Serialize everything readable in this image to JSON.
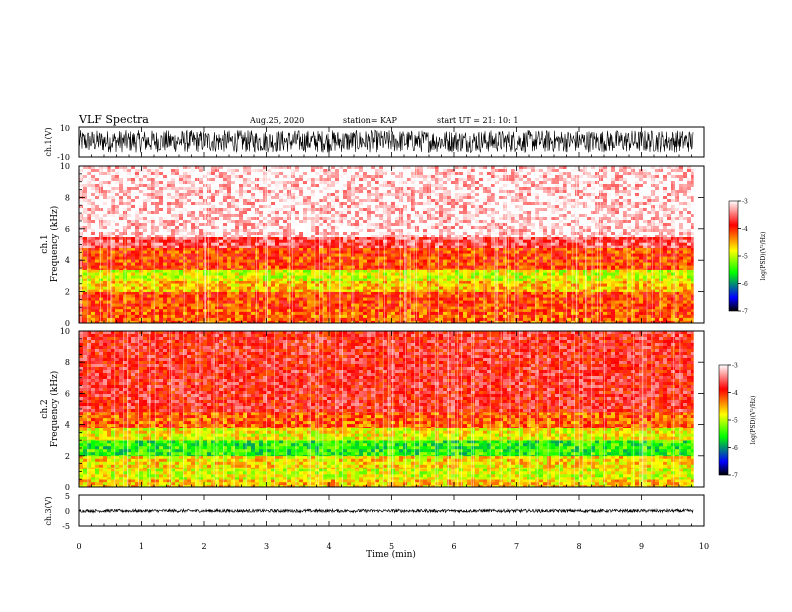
{
  "header": {
    "title": "VLF Spectra",
    "date": "Aug.25, 2020",
    "station": "station= KAP",
    "start": "start  UT  =   21: 10: 1"
  },
  "chart_data": [
    {
      "type": "line",
      "panel": "waveform-ch1",
      "ylabel": "ch.1(V)",
      "ylim": [
        -10,
        10
      ],
      "y_ticks": [
        "10",
        "-10"
      ],
      "xlim": [
        0,
        10
      ],
      "data_extent_x": [
        0,
        9.83
      ],
      "amplitude_range": [
        -7,
        8
      ],
      "color": "#000000"
    },
    {
      "type": "heatmap",
      "panel": "spectrogram-ch1",
      "ylabel": "Frequency  (kHz)",
      "channel_label": "ch.1",
      "ylim": [
        0,
        10
      ],
      "y_ticks": [
        "0",
        "2",
        "4",
        "6",
        "8",
        "10"
      ],
      "xlim": [
        0,
        10
      ],
      "data_extent_x": [
        0,
        9.83
      ],
      "colorbar": {
        "label": "log(PSD)(V²/Hz)",
        "range": [
          -7,
          -3
        ],
        "ticks": [
          "-3",
          "-4",
          "-5",
          "-6",
          "-7"
        ],
        "colors": [
          "#ffffff",
          "#ff0000",
          "#ffff00",
          "#00ff00",
          "#0000ff",
          "#000000"
        ]
      },
      "bands": [
        {
          "f_low": 0.0,
          "f_high": 0.9,
          "log_psd": -4.2
        },
        {
          "f_low": 0.9,
          "f_high": 2.0,
          "log_psd": -4.1
        },
        {
          "f_low": 2.0,
          "f_high": 2.7,
          "log_psd": -4.6
        },
        {
          "f_low": 2.7,
          "f_high": 3.4,
          "log_psd": -4.9
        },
        {
          "f_low": 3.4,
          "f_high": 4.8,
          "log_psd": -4.1
        },
        {
          "f_low": 4.8,
          "f_high": 5.5,
          "log_psd": -3.6
        },
        {
          "f_low": 5.5,
          "f_high": 10.0,
          "log_psd": -3.1
        }
      ]
    },
    {
      "type": "heatmap",
      "panel": "spectrogram-ch2",
      "ylabel": "Frequency  (kHz)",
      "channel_label": "ch.2",
      "ylim": [
        0,
        10
      ],
      "y_ticks": [
        "0",
        "2",
        "4",
        "6",
        "8",
        "10"
      ],
      "xlim": [
        0,
        10
      ],
      "data_extent_x": [
        0,
        9.83
      ],
      "colorbar": {
        "label": "log(PSD)(V²/Hz)",
        "range": [
          -7,
          -3
        ],
        "ticks": [
          "-3",
          "-4",
          "-5",
          "-6",
          "-7"
        ],
        "colors": [
          "#ffffff",
          "#ff0000",
          "#ffff00",
          "#00ff00",
          "#0000ff",
          "#000000"
        ]
      },
      "bands": [
        {
          "f_low": 0.0,
          "f_high": 0.5,
          "log_psd": -4.6
        },
        {
          "f_low": 0.5,
          "f_high": 1.2,
          "log_psd": -4.9
        },
        {
          "f_low": 1.2,
          "f_high": 2.0,
          "log_psd": -4.7
        },
        {
          "f_low": 2.0,
          "f_high": 3.0,
          "log_psd": -5.5
        },
        {
          "f_low": 3.0,
          "f_high": 3.8,
          "log_psd": -4.8
        },
        {
          "f_low": 3.8,
          "f_high": 4.8,
          "log_psd": -4.2
        },
        {
          "f_low": 4.8,
          "f_high": 10.0,
          "log_psd": -3.8
        }
      ]
    },
    {
      "type": "line",
      "panel": "waveform-ch3",
      "ylabel": "ch.3(V)",
      "ylim": [
        -5,
        5
      ],
      "y_ticks": [
        "5",
        "0",
        "-5"
      ],
      "xlim": [
        0,
        10
      ],
      "data_extent_x": [
        0,
        9.83
      ],
      "amplitude_range": [
        -0.6,
        0.4
      ],
      "color": "#000000"
    }
  ],
  "x_axis": {
    "label": "Time  (min)",
    "ticks": [
      "0",
      "1",
      "2",
      "3",
      "4",
      "5",
      "6",
      "7",
      "8",
      "9",
      "10"
    ]
  }
}
